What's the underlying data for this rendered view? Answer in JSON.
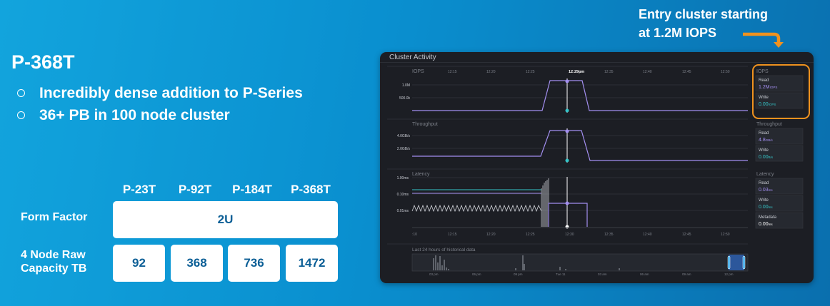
{
  "slide": {
    "title": "P-368T",
    "bullets": [
      "Incredibly dense addition to P-Series",
      "36+ PB in 100 node cluster"
    ],
    "callout_lines": [
      "Entry cluster starting",
      "at 1.2M IOPS"
    ],
    "accent_color": "#f0921e"
  },
  "table": {
    "columns": [
      "P-23T",
      "P-92T",
      "P-184T",
      "P-368T"
    ],
    "rows": [
      {
        "label_lines": [
          "Form Factor"
        ],
        "merged_value": "2U"
      },
      {
        "label_lines": [
          "4 Node Raw",
          "Capacity TB"
        ],
        "values": [
          "92",
          "368",
          "736",
          "1472"
        ]
      }
    ]
  },
  "dashboard": {
    "title": "Cluster Activity",
    "time_ticks": [
      "12:15",
      "12:20",
      "12:25",
      "12:29pm",
      "12:35",
      "12:40",
      "12:45",
      "12:50"
    ],
    "bottom_ticks": [
      ":10",
      "12:15",
      "12:20",
      "12:25",
      "12:30",
      "12:35",
      "12:40",
      "12:45",
      "12:50"
    ],
    "iops": {
      "chart_label": "IOPS",
      "y_ticks": [
        "1.0M",
        "500.0k"
      ],
      "panel_title": "IOPS",
      "read_label": "Read",
      "read_value": "1.2M",
      "read_unit": "IOPS",
      "write_label": "Write",
      "write_value": "0.00",
      "write_unit": "IOPS"
    },
    "throughput": {
      "chart_label": "Throughput",
      "y_ticks": [
        "4.0GB/s",
        "2.0GB/s"
      ],
      "panel_title": "Throughput",
      "read_label": "Read",
      "read_value": "4.8",
      "read_unit": "GB/s",
      "write_label": "Write",
      "write_value": "0.00",
      "write_unit": "B/s"
    },
    "latency": {
      "chart_label": "Latency",
      "y_ticks": [
        "1.00ms",
        "0.10ms",
        "0.01ms"
      ],
      "panel_title": "Latency",
      "read_label": "Read",
      "read_value": "0.03",
      "read_unit": "ms",
      "write_label": "Write",
      "write_value": "0.00",
      "write_unit": "ms",
      "meta_label": "Metadata",
      "meta_value": "0.00",
      "meta_unit": "ms"
    },
    "history": {
      "label": "Last 24 hours of historical data",
      "ticks": [
        "03 pm",
        "06 pm",
        "09 pm",
        "Tue 11",
        "03 am",
        "06 am",
        "09 am",
        "12 pm"
      ]
    },
    "read_color": "#a38ff0",
    "write_color": "#35c4c8"
  }
}
